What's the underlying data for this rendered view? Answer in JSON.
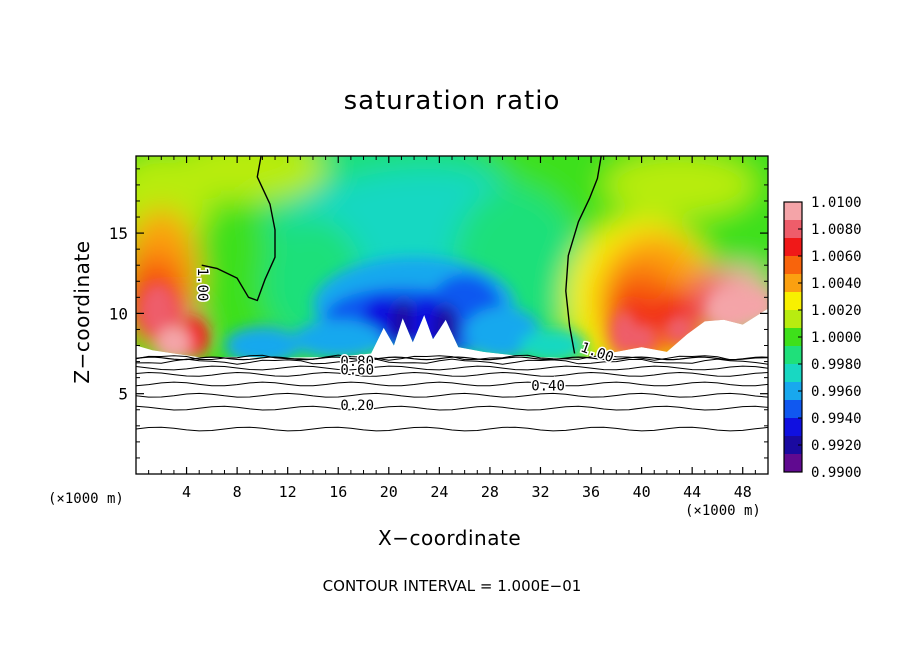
{
  "chart_data": {
    "type": "heatmap",
    "title": "saturation ratio",
    "xlabel": "X−coordinate",
    "ylabel": "Z−coordinate",
    "x_unit_label_left": "(×1000 m)",
    "x_unit_label_right": "(×1000 m)",
    "footer": "CONTOUR INTERVAL = 1.000E−01",
    "x_ticks": [
      "4",
      "8",
      "12",
      "16",
      "20",
      "24",
      "28",
      "32",
      "36",
      "40",
      "44",
      "48"
    ],
    "x_tick_values": [
      4,
      8,
      12,
      16,
      20,
      24,
      28,
      32,
      36,
      40,
      44,
      48
    ],
    "y_ticks": [
      "5",
      "10",
      "15"
    ],
    "y_tick_values": [
      5,
      10,
      15
    ],
    "xlim": [
      0,
      50
    ],
    "ylim": [
      0,
      19.8
    ],
    "colorbar": {
      "labels": [
        "1.0100",
        "1.0080",
        "1.0060",
        "1.0040",
        "1.0020",
        "1.0000",
        "0.9980",
        "0.9960",
        "0.9940",
        "0.9920",
        "0.9900"
      ],
      "values": [
        1.01,
        1.008,
        1.006,
        1.004,
        1.002,
        1.0,
        0.998,
        0.996,
        0.994,
        0.992,
        0.99
      ],
      "colors": [
        "#f4a4a8",
        "#ee5d6a",
        "#f01818",
        "#f8640c",
        "#fba010",
        "#f8f000",
        "#b8ec10",
        "#3ee01a",
        "#1fe07a",
        "#18d8c2",
        "#18a8ee",
        "#1058f0",
        "#1010e0",
        "#1a0aa0",
        "#600a90"
      ]
    },
    "contour_labels": [
      {
        "text": "1.00",
        "x": 5.3,
        "z": 11.8,
        "rotate": 90
      },
      {
        "text": "1.00",
        "x": 36.5,
        "z": 7.6,
        "rotate": 20
      },
      {
        "text": "0.80",
        "x": 17.5,
        "z": 7.05,
        "rotate": 0
      },
      {
        "text": "0.60",
        "x": 17.5,
        "z": 6.5,
        "rotate": 0
      },
      {
        "text": "0.40",
        "x": 32.6,
        "z": 5.5,
        "rotate": 0
      },
      {
        "text": "0.20",
        "x": 17.5,
        "z": 4.3,
        "rotate": 0
      }
    ],
    "contour_lines_z": [
      2.8,
      4.1,
      4.9,
      5.6,
      6.2,
      6.6,
      7.0,
      7.25
    ],
    "cloud_base_z": 7.2,
    "threshold_one_boundaries": {
      "left": [
        [
          9.9,
          19.8
        ],
        [
          9.6,
          18.5
        ],
        [
          10.6,
          16.8
        ],
        [
          11.0,
          15.2
        ],
        [
          11.0,
          13.5
        ],
        [
          10.2,
          12.1
        ],
        [
          9.6,
          10.8
        ],
        [
          8.9,
          11.0
        ],
        [
          8.0,
          12.2
        ],
        [
          6.4,
          12.8
        ],
        [
          5.2,
          13.0
        ]
      ],
      "right": [
        [
          36.8,
          19.8
        ],
        [
          36.5,
          18.4
        ],
        [
          35.9,
          17.2
        ],
        [
          35.0,
          15.7
        ],
        [
          34.2,
          13.6
        ],
        [
          34.0,
          11.4
        ],
        [
          34.3,
          9.2
        ],
        [
          34.7,
          7.5
        ]
      ]
    }
  }
}
